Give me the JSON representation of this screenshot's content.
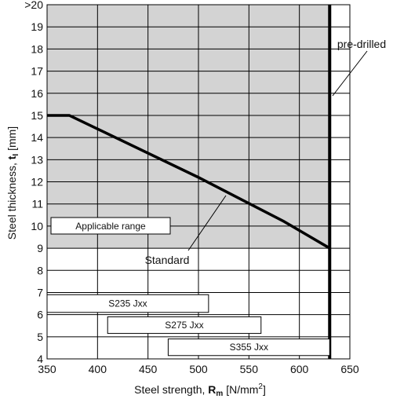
{
  "chart_data": {
    "type": "line",
    "xlabel_main": "Steel strength, ",
    "xlabel_symbol": "R",
    "xlabel_sub": "m",
    "xlabel_unit": " [N/mm",
    "xlabel_sup": "2",
    "xlabel_close": "]",
    "ylabel_main": "Steel thickness, ",
    "ylabel_symbol": "t",
    "ylabel_sub": "I",
    "ylabel_unit": " [mm]",
    "xlim": [
      350,
      650
    ],
    "ylim": [
      4,
      20
    ],
    "x_ticks": [
      "350",
      "400",
      "450",
      "500",
      "550",
      "600",
      "650"
    ],
    "y_ticks": [
      "4",
      "5",
      "6",
      "7",
      "8",
      "9",
      "10",
      "11",
      "12",
      "13",
      "14",
      "15",
      "16",
      "17",
      "18",
      "19",
      ">20"
    ],
    "applicable_fill": "#d3d3d3",
    "series": [
      {
        "name": "Standard",
        "x": [
          350,
          372,
          500,
          585,
          630
        ],
        "y": [
          15,
          15,
          12.2,
          10.2,
          9
        ]
      }
    ],
    "applicable_region_limit_x": 630,
    "applicable_region_min_y": 9,
    "labels": {
      "applicable_range": "Applicable range",
      "standard": "Standard",
      "pre_drilled": "pre-drilled"
    },
    "steel_grades": [
      {
        "name": "S235 Jxx",
        "x": [
          350,
          510
        ],
        "y": [
          6.1,
          6.9
        ]
      },
      {
        "name": "S275 Jxx",
        "x": [
          410,
          562
        ],
        "y": [
          5.15,
          5.9
        ]
      },
      {
        "name": "S355 Jxx",
        "x": [
          470,
          630
        ],
        "y": [
          4.15,
          4.9
        ]
      }
    ]
  }
}
